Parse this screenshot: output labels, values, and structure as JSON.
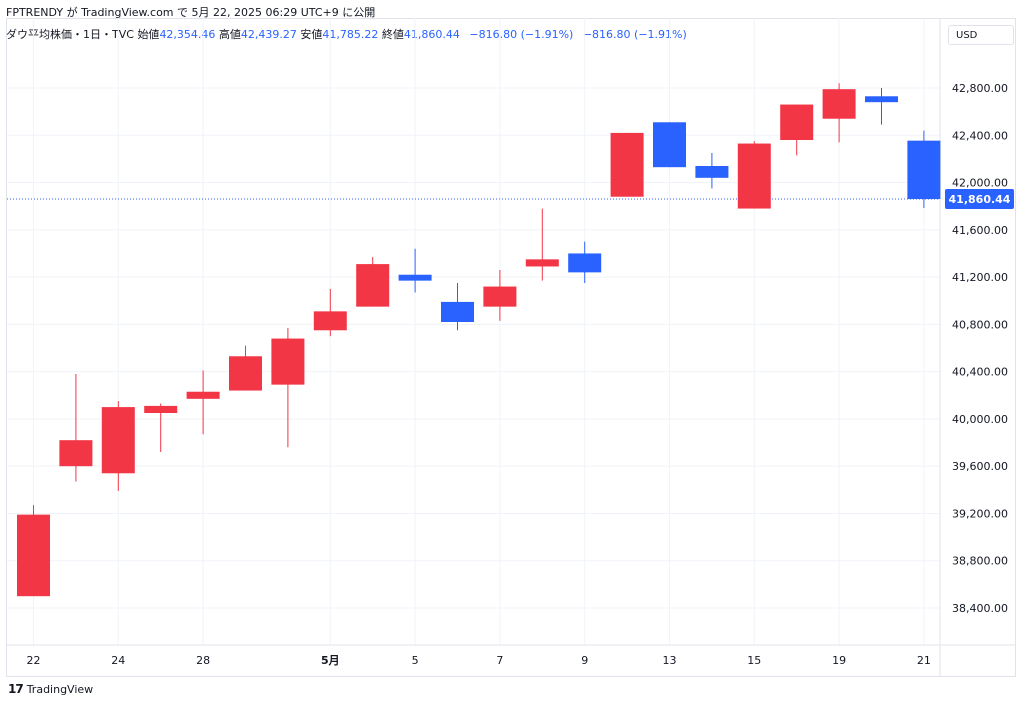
{
  "header": {
    "publish_line": "FPTRENDY が TradingView.com で 5月 22, 2025 06:29 UTC+9 に公開"
  },
  "legend": {
    "symbol": "ダウ平均株価・1日・TVC",
    "open_label": "始値",
    "open": "42,354.46",
    "high_label": "高値",
    "high": "42,439.27",
    "low_label": "安値",
    "low": "41,785.22",
    "close_label": "終値",
    "close": "41,860.44",
    "change": "−816.80 (−1.91%)",
    "change2": "−816.80 (−1.91%)"
  },
  "currency": "USD",
  "brand": "TradingView",
  "colors": {
    "up": "#f23645",
    "down": "#2962ff",
    "grid": "#f0f3fa",
    "price_line": "#2962ff"
  },
  "chart_data": {
    "type": "candlestick",
    "y_range": [
      38100,
      43150
    ],
    "y_ticks": [
      38400,
      38800,
      39200,
      39600,
      40000,
      40400,
      40800,
      41200,
      41600,
      42000,
      42400,
      42800
    ],
    "y_tick_labels": [
      "38,400.00",
      "38,800.00",
      "39,200.00",
      "39,600.00",
      "40,000.00",
      "40,400.00",
      "40,800.00",
      "41,200.00",
      "41,600.00",
      "42,000.00",
      "42,400.00",
      "42,800.00"
    ],
    "x_labels": [
      {
        "index": 0,
        "label": "22",
        "bold": false
      },
      {
        "index": 2,
        "label": "24",
        "bold": false
      },
      {
        "index": 4,
        "label": "28",
        "bold": false
      },
      {
        "index": 7,
        "label": "5月",
        "bold": true
      },
      {
        "index": 9,
        "label": "5",
        "bold": false
      },
      {
        "index": 11,
        "label": "7",
        "bold": false
      },
      {
        "index": 13,
        "label": "9",
        "bold": false
      },
      {
        "index": 15,
        "label": "13",
        "bold": false
      },
      {
        "index": 17,
        "label": "15",
        "bold": false
      },
      {
        "index": 19,
        "label": "19",
        "bold": false
      },
      {
        "index": 21,
        "label": "21",
        "bold": false
      }
    ],
    "candles": [
      {
        "o": 38500,
        "h": 39270,
        "l": 38500,
        "c": 39190
      },
      {
        "o": 39600,
        "h": 40380,
        "l": 39470,
        "c": 39820
      },
      {
        "o": 39540,
        "h": 40150,
        "l": 39390,
        "c": 40100
      },
      {
        "o": 40050,
        "h": 40130,
        "l": 39720,
        "c": 40110
      },
      {
        "o": 40170,
        "h": 40410,
        "l": 39870,
        "c": 40230
      },
      {
        "o": 40240,
        "h": 40620,
        "l": 40240,
        "c": 40530
      },
      {
        "o": 40290,
        "h": 40770,
        "l": 39760,
        "c": 40680
      },
      {
        "o": 40750,
        "h": 41100,
        "l": 40700,
        "c": 40910
      },
      {
        "o": 40950,
        "h": 41370,
        "l": 40950,
        "c": 41310
      },
      {
        "o": 41220,
        "h": 41440,
        "l": 41070,
        "c": 41170
      },
      {
        "o": 40990,
        "h": 41150,
        "l": 40750,
        "c": 40820
      },
      {
        "o": 40950,
        "h": 41260,
        "l": 40830,
        "c": 41120
      },
      {
        "o": 41290,
        "h": 41780,
        "l": 41170,
        "c": 41350
      },
      {
        "o": 41400,
        "h": 41500,
        "l": 41150,
        "c": 41240
      },
      {
        "o": 41880,
        "h": 42420,
        "l": 41880,
        "c": 42420
      },
      {
        "o": 42510,
        "h": 42510,
        "l": 42130,
        "c": 42130
      },
      {
        "o": 42140,
        "h": 42250,
        "l": 41950,
        "c": 42040
      },
      {
        "o": 41780,
        "h": 42350,
        "l": 41780,
        "c": 42330
      },
      {
        "o": 42360,
        "h": 42660,
        "l": 42230,
        "c": 42660
      },
      {
        "o": 42540,
        "h": 42840,
        "l": 42340,
        "c": 42790
      },
      {
        "o": 42730,
        "h": 42800,
        "l": 42490,
        "c": 42680
      },
      {
        "o": 42354.46,
        "h": 42439.27,
        "l": 41785.22,
        "c": 41860.44
      }
    ],
    "last_price": 41860.44,
    "last_price_label": "41,860.44"
  }
}
